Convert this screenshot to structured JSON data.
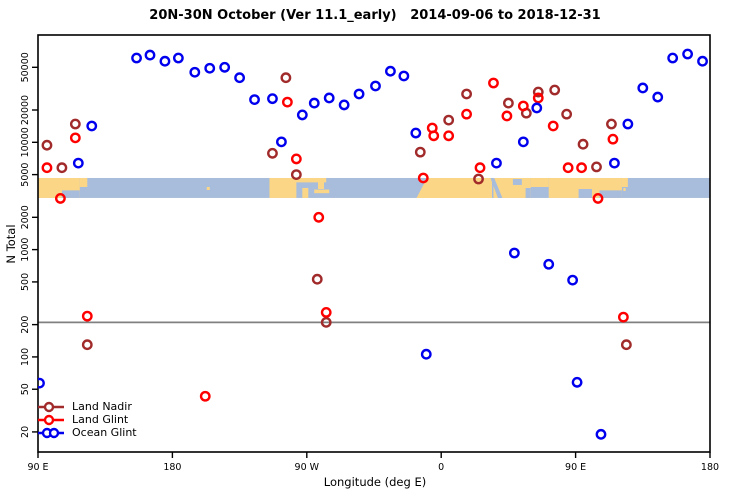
{
  "title": "20N-30N October (Ver 11.1_early)   2014-09-06 to 2018-12-31",
  "background_color": "#FFFFFF",
  "chart_data": {
    "type": "scatter",
    "title": "20N-30N October (Ver 11.1_early)   2014-09-06 to 2018-12-31",
    "xlabel": "Longitude (deg E)",
    "ylabel": "N Total",
    "y_scale": "log10",
    "ylim": [
      13,
      100000
    ],
    "y_ticks": [
      20,
      50,
      100,
      200,
      500,
      1000,
      2000,
      5000,
      10000,
      20000,
      50000
    ],
    "x_axis_deg_range": [
      90,
      540
    ],
    "x_ticks": [
      {
        "pos": 90,
        "label": "90 E"
      },
      {
        "pos": 180,
        "label": "180"
      },
      {
        "pos": 270,
        "label": "90 W"
      },
      {
        "pos": 360,
        "label": "0"
      },
      {
        "pos": 450,
        "label": "90 E"
      },
      {
        "pos": 540,
        "label": "180"
      }
    ],
    "grid": false,
    "legend_position": "bottom-left",
    "hline": {
      "value": 210,
      "color": "#808080"
    },
    "map_band": {
      "description": "world coastline strip 20N-30N drawn across plot",
      "value_top": 4650,
      "value_bottom": 3030,
      "ocean_color": "#A8BDDB",
      "land_color": "#FCD687",
      "land_rects": [
        [
          90,
          28,
          0,
          1
        ],
        [
          118,
          5,
          0,
          0.45
        ],
        [
          203,
          2,
          0.45,
          0.15
        ],
        [
          245,
          18,
          0,
          1
        ],
        [
          258,
          25,
          0,
          0.22
        ],
        [
          277.5,
          4,
          0,
          0.55
        ],
        [
          275,
          10,
          0.58,
          0.18
        ],
        [
          267,
          4,
          0.5,
          0.5
        ],
        [
          395,
          25,
          0,
          1
        ],
        [
          420,
          12,
          0,
          0.45
        ],
        [
          432,
          49,
          0,
          1
        ],
        [
          481,
          4,
          0,
          0.45
        ],
        [
          482,
          1.5,
          0.5,
          0.15
        ]
      ],
      "land_polys": [
        [
          [
            350.5,
            0
          ],
          [
            394,
            0
          ],
          [
            394,
            1
          ],
          [
            343.5,
            1
          ]
        ]
      ],
      "ocean_patches": [
        [
          106,
          12,
          0.62,
          0.38
        ],
        [
          408,
          6,
          0.05,
          0.3
        ],
        [
          416.5,
          3.5,
          0.5,
          0.5
        ],
        [
          452,
          9,
          0.55,
          0.45
        ],
        [
          466,
          15,
          0.62,
          0.38
        ]
      ],
      "ocean_polys": [
        [
          [
            393,
            0
          ],
          [
            395.5,
            0
          ],
          [
            401,
            1
          ],
          [
            398,
            1
          ]
        ]
      ]
    },
    "series": [
      {
        "name": "Land Nadir",
        "color": "#A12A2A",
        "marker": "open-circle",
        "points": [
          [
            96,
            9400
          ],
          [
            106,
            5800
          ],
          [
            115,
            14800
          ],
          [
            123,
            130
          ],
          [
            247,
            7900
          ],
          [
            256,
            40000
          ],
          [
            263,
            5000
          ],
          [
            277,
            530
          ],
          [
            283,
            210
          ],
          [
            346,
            8100
          ],
          [
            365,
            16100
          ],
          [
            377,
            28200
          ],
          [
            385,
            4550
          ],
          [
            405,
            23200
          ],
          [
            417,
            18700
          ],
          [
            425,
            29400
          ],
          [
            436,
            30700
          ],
          [
            444,
            18300
          ],
          [
            455,
            9600
          ],
          [
            464,
            5900
          ],
          [
            474,
            14800
          ],
          [
            484,
            130
          ]
        ]
      },
      {
        "name": "Land Glint",
        "color": "#FF0000",
        "marker": "open-circle",
        "points": [
          [
            96,
            5800
          ],
          [
            105,
            3000
          ],
          [
            115,
            11000
          ],
          [
            123,
            240
          ],
          [
            202,
            43
          ],
          [
            257,
            23700
          ],
          [
            263,
            7000
          ],
          [
            278,
            2000
          ],
          [
            283,
            260
          ],
          [
            348,
            4650
          ],
          [
            354,
            13600
          ],
          [
            355,
            11500
          ],
          [
            365,
            11500
          ],
          [
            377,
            18300
          ],
          [
            386,
            5800
          ],
          [
            395,
            35700
          ],
          [
            404,
            17600
          ],
          [
            415,
            21800
          ],
          [
            425,
            25900
          ],
          [
            435,
            14200
          ],
          [
            445,
            5800
          ],
          [
            454,
            5800
          ],
          [
            465,
            3000
          ],
          [
            475,
            10700
          ],
          [
            482,
            235
          ]
        ]
      },
      {
        "name": "Ocean Glint",
        "color": "#0000EE",
        "marker": "open-circle",
        "points": [
          [
            91,
            57
          ],
          [
            117,
            6400
          ],
          [
            126,
            14200
          ],
          [
            156,
            61000
          ],
          [
            165,
            65000
          ],
          [
            175,
            57000
          ],
          [
            184,
            61000
          ],
          [
            195,
            45000
          ],
          [
            205,
            49000
          ],
          [
            215,
            50000
          ],
          [
            225,
            40000
          ],
          [
            235,
            25000
          ],
          [
            247,
            25500
          ],
          [
            253,
            10100
          ],
          [
            267,
            18000
          ],
          [
            275,
            23200
          ],
          [
            285,
            25900
          ],
          [
            295,
            22300
          ],
          [
            305,
            28200
          ],
          [
            316,
            33500
          ],
          [
            326,
            46000
          ],
          [
            335,
            41500
          ],
          [
            343,
            12200
          ],
          [
            350,
            106
          ],
          [
            397,
            6400
          ],
          [
            409,
            930
          ],
          [
            415,
            10100
          ],
          [
            424,
            20900
          ],
          [
            432,
            730
          ],
          [
            448,
            520
          ],
          [
            451,
            58
          ],
          [
            467,
            19
          ],
          [
            476,
            6400
          ],
          [
            485,
            14800
          ],
          [
            495,
            32100
          ],
          [
            505,
            26400
          ],
          [
            515,
            61000
          ],
          [
            525,
            66500
          ],
          [
            535,
            57000
          ]
        ]
      }
    ]
  },
  "legend": {
    "items": [
      {
        "label": "Land Nadir"
      },
      {
        "label": "Land Glint"
      },
      {
        "label": "Ocean Glint"
      }
    ]
  }
}
